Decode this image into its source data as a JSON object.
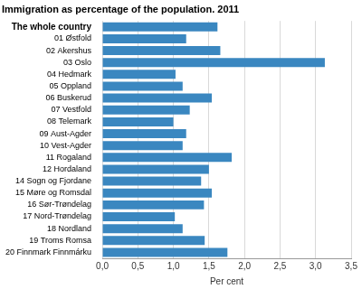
{
  "chart_data": {
    "type": "bar",
    "orientation": "horizontal",
    "title": "Immigration as percentage of the population. 2011",
    "x_label": "Per cent",
    "categories": [
      "The whole country",
      "01 Østfold",
      "02 Akershus",
      "03 Oslo",
      "04 Hedmark",
      "05 Oppland",
      "06 Buskerud",
      "07 Vestfold",
      "08 Telemark",
      "09 Aust-Agder",
      "10 Vest-Agder",
      "11 Rogaland",
      "12 Hordaland",
      "14 Sogn og Fjordane",
      "15 Møre og Romsdal",
      "16 Sør-Trøndelag",
      "17 Nord-Trøndelag",
      "18 Nordland",
      "19 Troms Romsa",
      "20 Finnmark Finnmárku"
    ],
    "values": [
      1.62,
      1.18,
      1.66,
      3.13,
      1.03,
      1.13,
      1.54,
      1.23,
      1.0,
      1.18,
      1.13,
      1.82,
      1.5,
      1.39,
      1.54,
      1.43,
      1.02,
      1.13,
      1.44,
      1.76
    ],
    "color": "#3a87c0",
    "xlim": [
      0,
      3.5
    ],
    "xticks": [
      {
        "value": 0,
        "label": "0,0"
      },
      {
        "value": 0.5,
        "label": "0,5"
      },
      {
        "value": 1,
        "label": "1,0"
      },
      {
        "value": 1.5,
        "label": "1,5"
      },
      {
        "value": 2,
        "label": "2,0"
      },
      {
        "value": 2.5,
        "label": "2,5"
      },
      {
        "value": 3,
        "label": "3,0"
      },
      {
        "value": 3.5,
        "label": "3,5"
      }
    ],
    "grid": true
  }
}
